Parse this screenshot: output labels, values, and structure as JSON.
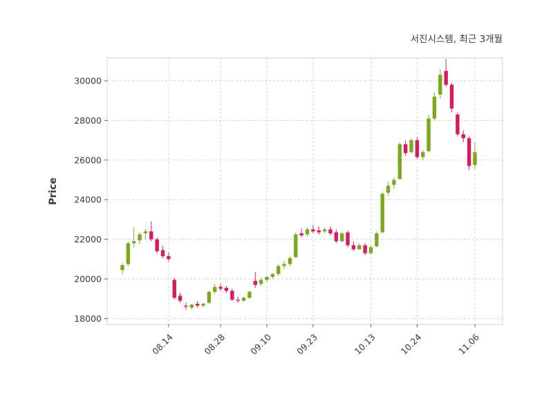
{
  "header": {
    "title": "서진시스템, 최근 3개월"
  },
  "chart_data": {
    "type": "candlestick",
    "title": "서진시스템, 최근 3개월",
    "ylabel": "Price",
    "ylim": [
      17700,
      31150
    ],
    "yticks": [
      18000,
      20000,
      22000,
      24000,
      26000,
      28000,
      30000
    ],
    "xtick_labels": [
      "08.14",
      "08.28",
      "09.10",
      "09.23",
      "10.13",
      "10.24",
      "11.06"
    ],
    "xtick_indices": [
      8,
      17,
      25,
      33,
      43,
      51,
      61
    ],
    "up_color": "#7CA821",
    "down_color": "#D81B60",
    "grid": true,
    "grid_color": "#cccccc",
    "border_color": "#cfcfcf",
    "candles": [
      [
        20450,
        20800,
        20250,
        20700
      ],
      [
        20750,
        21900,
        20650,
        21800
      ],
      [
        21800,
        22600,
        21600,
        21900
      ],
      [
        21950,
        22350,
        21750,
        22250
      ],
      [
        22300,
        22500,
        22000,
        22400
      ],
      [
        22400,
        22900,
        21900,
        22000
      ],
      [
        22000,
        22100,
        21300,
        21400
      ],
      [
        21450,
        21650,
        21050,
        21150
      ],
      [
        21150,
        21350,
        20900,
        21000
      ],
      [
        19950,
        20050,
        18950,
        19050
      ],
      [
        19150,
        19300,
        18800,
        18900
      ],
      [
        18650,
        18800,
        18450,
        18600
      ],
      [
        18550,
        18750,
        18450,
        18700
      ],
      [
        18750,
        18900,
        18550,
        18650
      ],
      [
        18650,
        18800,
        18550,
        18750
      ],
      [
        18800,
        19400,
        18750,
        19350
      ],
      [
        19350,
        19750,
        19250,
        19600
      ],
      [
        19600,
        19750,
        19400,
        19500
      ],
      [
        19550,
        19650,
        19300,
        19400
      ],
      [
        19400,
        19500,
        18900,
        18950
      ],
      [
        18950,
        19100,
        18800,
        18900
      ],
      [
        18900,
        19100,
        18850,
        19050
      ],
      [
        19050,
        19400,
        19000,
        19350
      ],
      [
        19900,
        20350,
        19550,
        19700
      ],
      [
        19750,
        20050,
        19650,
        19950
      ],
      [
        19950,
        20150,
        19850,
        20100
      ],
      [
        20100,
        20300,
        20000,
        20250
      ],
      [
        20250,
        20750,
        20150,
        20650
      ],
      [
        20650,
        20900,
        20500,
        20750
      ],
      [
        20750,
        21150,
        20650,
        21050
      ],
      [
        21100,
        22350,
        21050,
        22250
      ],
      [
        22300,
        22550,
        22100,
        22200
      ],
      [
        22250,
        22600,
        22150,
        22500
      ],
      [
        22500,
        22700,
        22300,
        22400
      ],
      [
        22450,
        22650,
        22250,
        22350
      ],
      [
        22400,
        22600,
        22300,
        22500
      ],
      [
        22500,
        22650,
        22200,
        22300
      ],
      [
        22350,
        22500,
        21800,
        21900
      ],
      [
        21900,
        22400,
        21850,
        22300
      ],
      [
        22350,
        22450,
        21600,
        21700
      ],
      [
        21700,
        21900,
        21400,
        21500
      ],
      [
        21500,
        21800,
        21450,
        21700
      ],
      [
        21700,
        21800,
        21200,
        21300
      ],
      [
        21300,
        21700,
        21250,
        21600
      ],
      [
        21650,
        22400,
        21600,
        22300
      ],
      [
        22350,
        24400,
        22300,
        24300
      ],
      [
        24350,
        24900,
        24200,
        24700
      ],
      [
        24750,
        25100,
        24550,
        25000
      ],
      [
        25050,
        26900,
        25000,
        26800
      ],
      [
        26800,
        27000,
        26200,
        26350
      ],
      [
        26400,
        27100,
        26350,
        27000
      ],
      [
        27000,
        27150,
        26050,
        26150
      ],
      [
        26150,
        26500,
        26000,
        26400
      ],
      [
        26450,
        28300,
        26400,
        28100
      ],
      [
        28100,
        29400,
        28000,
        29200
      ],
      [
        29300,
        30600,
        29100,
        30300
      ],
      [
        30500,
        31100,
        29700,
        29800
      ],
      [
        29800,
        29900,
        28400,
        28600
      ],
      [
        28300,
        28400,
        27200,
        27300
      ],
      [
        27300,
        27500,
        26900,
        27100
      ],
      [
        27100,
        27200,
        25500,
        25700
      ],
      [
        25750,
        26900,
        25550,
        26400
      ]
    ]
  }
}
